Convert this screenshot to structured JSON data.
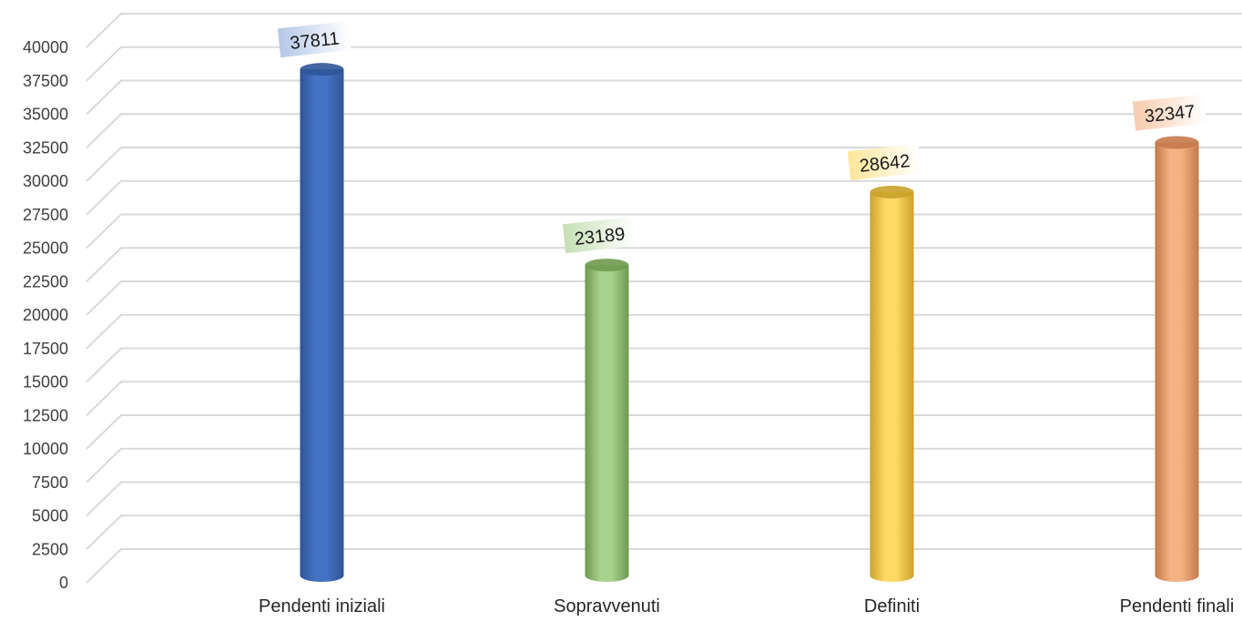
{
  "chart_data": {
    "type": "bar",
    "style": "3d-cylinder",
    "title": "",
    "xlabel": "",
    "ylabel": "",
    "categories": [
      "Pendenti iniziali",
      "Sopravvenuti",
      "Definiti",
      "Pendenti finali"
    ],
    "values": [
      37811,
      23189,
      28642,
      32347
    ],
    "data_labels": [
      "37811",
      "23189",
      "28642",
      "32347"
    ],
    "ylim": [
      0,
      40000
    ],
    "ytick_step": 2500,
    "yticks": [
      "0",
      "2500",
      "5000",
      "7500",
      "10000",
      "12500",
      "15000",
      "17500",
      "20000",
      "22500",
      "25000",
      "27500",
      "30000",
      "32500",
      "35000",
      "37500",
      "40000"
    ],
    "grid": true,
    "legend": "none",
    "colors": {
      "bars": [
        "#4472C4",
        "#A9D18E",
        "#FFD966",
        "#F4B183"
      ],
      "bars_dark": [
        "#2F5597",
        "#6F9A4E",
        "#C9A227",
        "#C47A4A"
      ],
      "label_bg": [
        "#B4C7E7",
        "#C5E0B4",
        "#FFE699",
        "#F8CBAD"
      ],
      "grid": "#D9D9D9"
    }
  }
}
